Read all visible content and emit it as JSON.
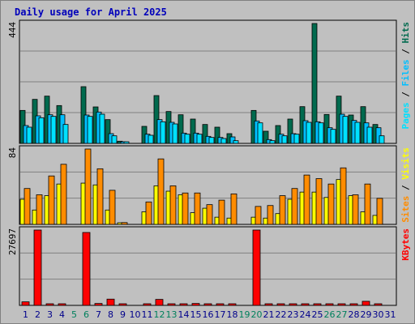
{
  "title": "Daily usage for April 2025",
  "colors": {
    "hits": "#006a4e",
    "files": "#00bfff",
    "pages": "#00e0ff",
    "visits": "#ffff00",
    "sites": "#ff8c00",
    "kbytes": "#ff0000",
    "weekend": "#00805c",
    "weekday": "#00008b",
    "separator": "#000000"
  },
  "chart_data": [
    {
      "type": "bar",
      "name": "hits-files-pages",
      "ymax_label": "444",
      "ylim": [
        0,
        444
      ],
      "right_label": [
        {
          "text": "Pages",
          "color": "#00e0ff"
        },
        {
          "text": " / ",
          "color": "#000000"
        },
        {
          "text": "Files",
          "color": "#00bfff"
        },
        {
          "text": " / ",
          "color": "#000000"
        },
        {
          "text": "Hits",
          "color": "#006a4e"
        }
      ],
      "categories": [
        "1",
        "2",
        "3",
        "4",
        "5",
        "6",
        "7",
        "8",
        "9",
        "10",
        "11",
        "12",
        "13",
        "14",
        "15",
        "16",
        "17",
        "18",
        "19",
        "20",
        "21",
        "22",
        "23",
        "24",
        "25",
        "26",
        "27",
        "28",
        "29",
        "30",
        "31"
      ],
      "series": [
        {
          "key": "hits",
          "values": [
            122,
            163,
            175,
            140,
            0,
            210,
            135,
            88,
            8,
            0,
            63,
            177,
            118,
            106,
            90,
            70,
            60,
            36,
            0,
            122,
            45,
            66,
            90,
            136,
            444,
            107,
            175,
            105,
            136,
            70,
            0
          ]
        },
        {
          "key": "files",
          "values": [
            66,
            102,
            106,
            106,
            0,
            105,
            116,
            36,
            6,
            0,
            34,
            88,
            78,
            38,
            38,
            26,
            22,
            24,
            0,
            83,
            14,
            34,
            36,
            84,
            80,
            58,
            108,
            85,
            76,
            58,
            0
          ]
        },
        {
          "key": "pages",
          "values": [
            60,
            95,
            100,
            70,
            0,
            100,
            108,
            28,
            4,
            0,
            30,
            80,
            72,
            34,
            34,
            22,
            18,
            10,
            0,
            76,
            10,
            28,
            34,
            78,
            76,
            52,
            100,
            78,
            60,
            28,
            0
          ]
        }
      ],
      "xlabel": "",
      "ylabel": ""
    },
    {
      "type": "bar",
      "name": "visits-sites",
      "ymax_label": "84",
      "ylim": [
        0,
        84
      ],
      "right_label": [
        {
          "text": "Sites",
          "color": "#ff8c00"
        },
        {
          "text": " / ",
          "color": "#000000"
        },
        {
          "text": "Visits",
          "color": "#ffff00"
        }
      ],
      "categories": [
        "1",
        "2",
        "3",
        "4",
        "5",
        "6",
        "7",
        "8",
        "9",
        "10",
        "11",
        "12",
        "13",
        "14",
        "15",
        "16",
        "17",
        "18",
        "19",
        "20",
        "21",
        "22",
        "23",
        "24",
        "25",
        "26",
        "27",
        "28",
        "29",
        "30",
        "31"
      ],
      "series": [
        {
          "key": "visits",
          "values": [
            28,
            16,
            32,
            45,
            0,
            46,
            44,
            16,
            1,
            0,
            14,
            43,
            37,
            33,
            13,
            18,
            8,
            7,
            0,
            8,
            7,
            12,
            28,
            36,
            36,
            30,
            50,
            32,
            14,
            10,
            0
          ]
        },
        {
          "key": "sites",
          "values": [
            40,
            33,
            54,
            67,
            0,
            84,
            62,
            38,
            2,
            0,
            25,
            73,
            43,
            35,
            35,
            22,
            27,
            34,
            0,
            20,
            21,
            32,
            40,
            55,
            51,
            45,
            63,
            33,
            45,
            29,
            0
          ]
        }
      ],
      "xlabel": "",
      "ylabel": ""
    },
    {
      "type": "bar",
      "name": "kbytes",
      "ymax_label": "27697",
      "ylim": [
        0,
        27697
      ],
      "right_label": [
        {
          "text": "KBytes",
          "color": "#ff0000"
        }
      ],
      "categories": [
        "1",
        "2",
        "3",
        "4",
        "5",
        "6",
        "7",
        "8",
        "9",
        "10",
        "11",
        "12",
        "13",
        "14",
        "15",
        "16",
        "17",
        "18",
        "19",
        "20",
        "21",
        "22",
        "23",
        "24",
        "25",
        "26",
        "27",
        "28",
        "29",
        "30",
        "31"
      ],
      "series": [
        {
          "key": "kbytes",
          "values": [
            1300,
            27697,
            400,
            400,
            0,
            26800,
            700,
            2300,
            300,
            0,
            400,
            2200,
            400,
            400,
            700,
            400,
            300,
            300,
            0,
            27697,
            300,
            300,
            300,
            300,
            400,
            300,
            300,
            300,
            1500,
            400,
            0
          ]
        }
      ],
      "xlabel": "",
      "ylabel": ""
    }
  ],
  "x_axis": {
    "labels": [
      "1",
      "2",
      "3",
      "4",
      "5",
      "6",
      "7",
      "8",
      "9",
      "10",
      "11",
      "12",
      "13",
      "14",
      "15",
      "16",
      "17",
      "18",
      "19",
      "20",
      "21",
      "22",
      "23",
      "24",
      "25",
      "26",
      "27",
      "28",
      "29",
      "30",
      "31"
    ],
    "weekend_days": [
      5,
      6,
      12,
      13,
      19,
      20,
      26,
      27
    ]
  }
}
